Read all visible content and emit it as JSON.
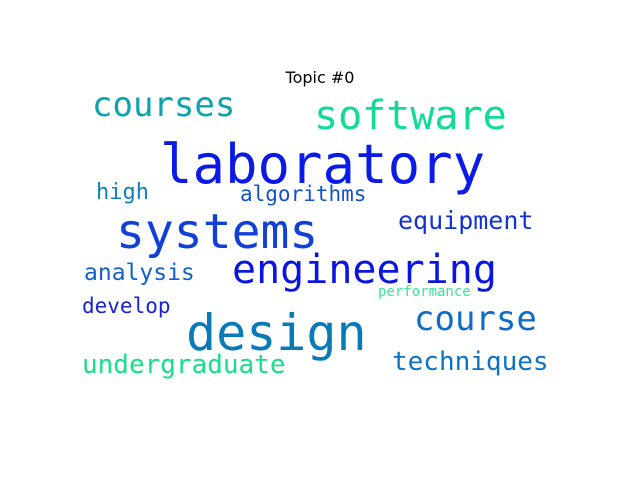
{
  "title": "Topic #0",
  "words": [
    {
      "text": "laboratory",
      "color": "#0a1ae8"
    },
    {
      "text": "design",
      "color": "#087ab8"
    },
    {
      "text": "systems",
      "color": "#1140d8"
    },
    {
      "text": "engineering",
      "color": "#0a16e0"
    },
    {
      "text": "software",
      "color": "#10dc98"
    },
    {
      "text": "courses",
      "color": "#0aa4ac"
    },
    {
      "text": "course",
      "color": "#0c6cc8"
    },
    {
      "text": "undergraduate",
      "color": "#14e088"
    },
    {
      "text": "techniques",
      "color": "#0c72c4"
    },
    {
      "text": "equipment",
      "color": "#1232d4"
    },
    {
      "text": "algorithms",
      "color": "#1452cc"
    },
    {
      "text": "analysis",
      "color": "#1260c8"
    },
    {
      "text": "high",
      "color": "#1080c0"
    },
    {
      "text": "develop",
      "color": "#1822d8"
    },
    {
      "text": "performance",
      "color": "#30e898"
    }
  ]
}
